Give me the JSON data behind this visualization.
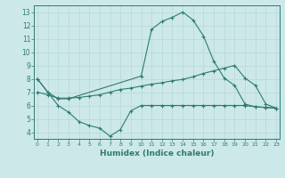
{
  "line1_x": [
    0,
    1,
    2,
    3,
    10,
    11,
    12,
    13,
    14,
    15,
    16,
    17,
    18,
    19,
    20,
    21,
    22,
    23
  ],
  "line1_y": [
    8.0,
    7.0,
    6.5,
    6.5,
    8.2,
    11.7,
    12.3,
    12.6,
    13.0,
    12.4,
    11.2,
    9.3,
    8.05,
    7.5,
    6.1,
    5.9,
    5.85,
    5.8
  ],
  "line2_x": [
    0,
    1,
    2,
    3,
    4,
    5,
    6,
    7,
    8,
    9,
    10,
    11,
    12,
    13,
    14,
    15,
    16,
    17,
    18,
    19,
    20,
    21,
    22,
    23
  ],
  "line2_y": [
    7.0,
    6.8,
    6.55,
    6.55,
    6.6,
    6.7,
    6.8,
    7.0,
    7.2,
    7.3,
    7.45,
    7.6,
    7.7,
    7.85,
    7.95,
    8.15,
    8.4,
    8.6,
    8.8,
    9.0,
    8.05,
    7.5,
    6.1,
    5.8
  ],
  "line3_x": [
    0,
    1,
    2,
    3,
    4,
    5,
    6,
    7,
    8,
    9,
    10,
    11,
    12,
    13,
    14,
    15,
    16,
    17,
    18,
    19,
    20,
    21,
    22,
    23
  ],
  "line3_y": [
    8.0,
    7.0,
    6.0,
    5.5,
    4.8,
    4.5,
    4.3,
    3.7,
    4.2,
    5.6,
    6.0,
    6.0,
    6.0,
    6.0,
    6.0,
    6.0,
    6.0,
    6.0,
    6.0,
    6.0,
    6.0,
    5.9,
    5.85,
    5.8
  ],
  "line_color": "#2e7b72",
  "bg_color": "#cce8e8",
  "grid_color": "#b8d8d8",
  "xlabel": "Humidex (Indice chaleur)",
  "xlim": [
    0,
    23
  ],
  "ylim": [
    3.5,
    13.5
  ],
  "yticks": [
    4,
    5,
    6,
    7,
    8,
    9,
    10,
    11,
    12,
    13
  ],
  "xticks": [
    0,
    1,
    2,
    3,
    4,
    5,
    6,
    7,
    8,
    9,
    10,
    11,
    12,
    13,
    14,
    15,
    16,
    17,
    18,
    19,
    20,
    21,
    22,
    23
  ]
}
